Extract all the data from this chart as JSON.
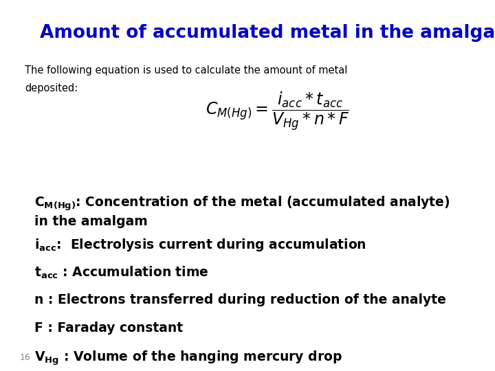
{
  "title": "Amount of accumulated metal in the amalgam",
  "title_color": "#0000CC",
  "title_fontsize": 19,
  "background_color": "#FFFFFF",
  "subtitle_line1": "The following equation is used to calculate the amount of metal",
  "subtitle_line2": "deposited:",
  "subtitle_fontsize": 10.5,
  "subtitle_color": "#000000",
  "bullet_fontsize": 13.5,
  "bullet_color": "#000000",
  "page_number": "16",
  "page_number_fontsize": 9,
  "page_number_color": "#888888"
}
